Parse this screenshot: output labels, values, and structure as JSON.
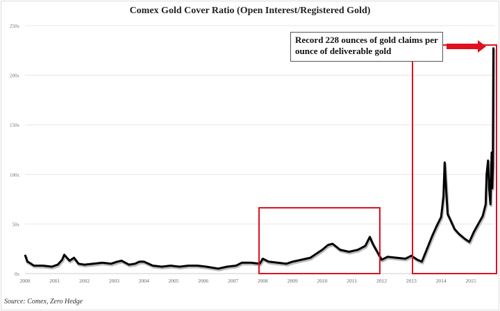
{
  "chart_data": {
    "type": "line",
    "title": "Comex Gold Cover Ratio (Open Interest/Registered Gold)",
    "xlabel": "",
    "ylabel": "",
    "xlim": [
      2000,
      2015.9
    ],
    "ylim": [
      0,
      250
    ],
    "y_ticks": [
      0,
      50,
      100,
      150,
      200,
      250
    ],
    "y_tick_labels": [
      "0x",
      "50x",
      "100x",
      "150x",
      "200x",
      "250x"
    ],
    "x_ticks": [
      2000,
      2001,
      2002,
      2003,
      2004,
      2005,
      2006,
      2007,
      2008,
      2009,
      2010,
      2011,
      2012,
      2013,
      2014,
      2015
    ],
    "x_tick_labels": [
      "2000",
      "2001",
      "2002",
      "2003",
      "2004",
      "2005",
      "2006",
      "2007",
      "2008",
      "2009",
      "2010",
      "2011",
      "2012",
      "2013",
      "2014",
      "2015"
    ],
    "grid": true,
    "legend": "none",
    "series": [
      {
        "name": "Cover Ratio",
        "color": "#000000",
        "x": [
          2000.0,
          2000.08,
          2000.15,
          2000.3,
          2000.6,
          2000.9,
          2001.1,
          2001.25,
          2001.32,
          2001.5,
          2001.65,
          2001.8,
          2002.0,
          2002.3,
          2002.6,
          2002.9,
          2003.1,
          2003.25,
          2003.5,
          2003.7,
          2003.85,
          2004.0,
          2004.3,
          2004.6,
          2004.9,
          2005.2,
          2005.5,
          2005.8,
          2006.1,
          2006.5,
          2006.8,
          2007.1,
          2007.3,
          2007.6,
          2007.9,
          2008.0,
          2008.2,
          2008.5,
          2008.8,
          2009.0,
          2009.3,
          2009.6,
          2009.8,
          2010.0,
          2010.2,
          2010.35,
          2010.6,
          2010.9,
          2011.2,
          2011.45,
          2011.6,
          2011.7,
          2011.85,
          2012.0,
          2012.2,
          2012.5,
          2012.8,
          2013.0,
          2013.2,
          2013.35,
          2013.5,
          2013.7,
          2013.85,
          2014.0,
          2014.08,
          2014.12,
          2014.16,
          2014.22,
          2014.3,
          2014.45,
          2014.6,
          2014.8,
          2014.95,
          2015.1,
          2015.25,
          2015.4,
          2015.5,
          2015.53,
          2015.58,
          2015.62,
          2015.66,
          2015.7,
          2015.72,
          2015.74,
          2015.76
        ],
        "y": [
          19,
          12,
          11,
          8,
          8,
          7,
          9,
          14,
          19,
          13,
          16,
          10,
          9,
          10,
          11,
          10,
          12,
          13,
          9,
          10,
          12,
          12,
          8,
          7,
          8,
          7,
          8,
          8,
          7,
          5,
          7,
          8,
          11,
          11,
          10,
          15,
          12,
          11,
          10,
          12,
          14,
          16,
          20,
          24,
          29,
          30,
          24,
          22,
          24,
          28,
          37,
          30,
          22,
          14,
          17,
          16,
          15,
          18,
          14,
          12,
          23,
          38,
          48,
          57,
          78,
          112,
          90,
          60,
          55,
          45,
          40,
          35,
          32,
          42,
          50,
          58,
          70,
          100,
          114,
          85,
          70,
          122,
          86,
          108,
          228
        ]
      }
    ],
    "annotations": {
      "callout": "Record 228 ounces of gold claims per ounce of deliverable gold",
      "highlight_color": "#e0101e"
    },
    "source": "Source: Comex, Zero Hedge"
  }
}
